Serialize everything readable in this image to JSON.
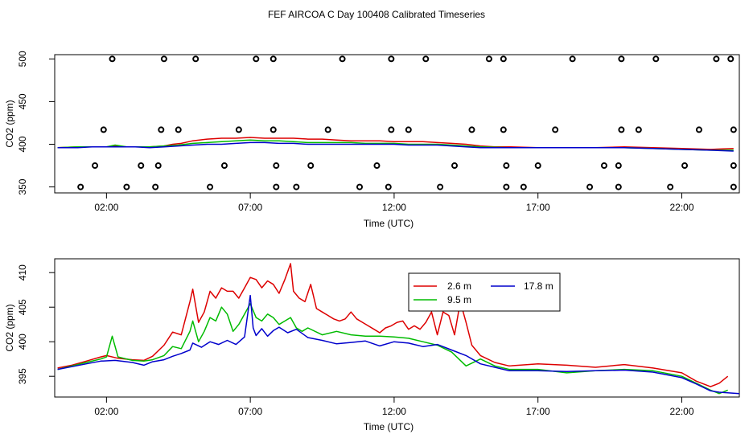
{
  "title": "FEF AIRCOA C  Day 100408  Calibrated Timeseries",
  "colors": {
    "s1": "#dd0000",
    "s2": "#00bb00",
    "s3": "#0000cc"
  },
  "chart_data": [
    {
      "type": "scatter+line",
      "name": "top",
      "xlabel": "Time (UTC)",
      "ylabel": "CO2 (ppm)",
      "xlim": [
        0.2,
        24.0
      ],
      "ylim": [
        343,
        505
      ],
      "xticks": [
        2,
        7,
        12,
        17,
        22
      ],
      "xtick_labels": [
        "02:00",
        "07:00",
        "12:00",
        "17:00",
        "22:00"
      ],
      "yticks": [
        350,
        400,
        450,
        500
      ],
      "ytick_labels": [
        "350",
        "400",
        "450",
        "500"
      ],
      "markers": [
        [
          1.1,
          350
        ],
        [
          1.6,
          375
        ],
        [
          1.9,
          417
        ],
        [
          2.2,
          500
        ],
        [
          2.7,
          350
        ],
        [
          3.2,
          375
        ],
        [
          3.7,
          350
        ],
        [
          3.8,
          375
        ],
        [
          3.9,
          417
        ],
        [
          4.0,
          500
        ],
        [
          4.5,
          417
        ],
        [
          5.1,
          500
        ],
        [
          5.6,
          350
        ],
        [
          6.1,
          375
        ],
        [
          6.6,
          417
        ],
        [
          7.2,
          500
        ],
        [
          7.8,
          417
        ],
        [
          7.8,
          500
        ],
        [
          7.9,
          375
        ],
        [
          7.9,
          350
        ],
        [
          8.6,
          350
        ],
        [
          9.1,
          375
        ],
        [
          9.7,
          417
        ],
        [
          10.2,
          500
        ],
        [
          10.8,
          350
        ],
        [
          11.4,
          375
        ],
        [
          11.8,
          350
        ],
        [
          11.9,
          417
        ],
        [
          11.9,
          500
        ],
        [
          12.5,
          417
        ],
        [
          13.1,
          500
        ],
        [
          13.6,
          350
        ],
        [
          14.1,
          375
        ],
        [
          14.7,
          417
        ],
        [
          15.3,
          500
        ],
        [
          15.8,
          500
        ],
        [
          15.8,
          417
        ],
        [
          15.9,
          375
        ],
        [
          15.9,
          350
        ],
        [
          16.5,
          350
        ],
        [
          17.0,
          375
        ],
        [
          17.6,
          417
        ],
        [
          18.2,
          500
        ],
        [
          18.8,
          350
        ],
        [
          19.3,
          375
        ],
        [
          19.8,
          350
        ],
        [
          19.8,
          375
        ],
        [
          19.9,
          417
        ],
        [
          19.9,
          500
        ],
        [
          20.5,
          417
        ],
        [
          21.1,
          500
        ],
        [
          21.6,
          350
        ],
        [
          22.1,
          375
        ],
        [
          22.6,
          417
        ],
        [
          23.2,
          500
        ],
        [
          23.7,
          500
        ],
        [
          23.8,
          417
        ],
        [
          23.8,
          375
        ],
        [
          23.8,
          350
        ]
      ],
      "series": [
        {
          "name": "2.6 m",
          "x": [
            0.3,
            1,
            1.5,
            2,
            2.3,
            2.7,
            3,
            3.5,
            4,
            4.3,
            4.6,
            5,
            5.5,
            6,
            6.5,
            7,
            7.5,
            8,
            8.5,
            9,
            9.5,
            10,
            10.5,
            11,
            11.5,
            12,
            12.5,
            13,
            13.5,
            14,
            14.5,
            15,
            15.5,
            16,
            17,
            18,
            19,
            20,
            21,
            22,
            23,
            23.8
          ],
          "y": [
            396,
            397,
            397,
            397,
            398,
            397,
            397,
            397,
            398,
            400,
            401,
            404,
            406,
            407,
            407,
            408,
            407,
            407,
            407,
            406,
            406,
            405,
            404,
            404,
            404,
            403,
            403,
            403,
            402,
            401,
            400,
            398,
            397,
            397,
            396,
            396,
            396,
            397,
            396,
            395,
            394,
            395
          ]
        },
        {
          "name": "9.5 m",
          "x": [
            0.3,
            1,
            1.5,
            2,
            2.3,
            2.7,
            3,
            3.5,
            4,
            4.5,
            5,
            5.5,
            6,
            6.5,
            7,
            7.5,
            8,
            8.5,
            9,
            9.5,
            10,
            10.5,
            11,
            11.5,
            12,
            12.5,
            13,
            13.5,
            14,
            14.5,
            15,
            16,
            17,
            18,
            19,
            20,
            21,
            22,
            23,
            23.8
          ],
          "y": [
            396,
            397,
            397,
            397,
            399,
            397,
            397,
            397,
            398,
            399,
            401,
            402,
            403,
            404,
            405,
            404,
            404,
            403,
            402,
            402,
            402,
            402,
            401,
            401,
            401,
            400,
            400,
            400,
            399,
            398,
            397,
            396,
            396,
            396,
            396,
            396,
            395,
            394,
            393,
            393
          ]
        },
        {
          "name": "17.8 m",
          "x": [
            0.3,
            1,
            1.5,
            2,
            2.5,
            3,
            3.5,
            4,
            4.5,
            5,
            5.5,
            6,
            6.5,
            7,
            7.5,
            8,
            8.5,
            9,
            9.5,
            10,
            10.5,
            11,
            11.5,
            12,
            12.5,
            13,
            13.5,
            14,
            14.5,
            15,
            16,
            17,
            18,
            19,
            20,
            21,
            22,
            23,
            23.8
          ],
          "y": [
            396,
            396,
            397,
            397,
            397,
            397,
            396,
            397,
            398,
            399,
            400,
            400,
            401,
            402,
            402,
            401,
            401,
            400,
            400,
            400,
            400,
            400,
            400,
            400,
            399,
            399,
            399,
            398,
            397,
            396,
            396,
            396,
            396,
            396,
            396,
            395,
            394,
            393,
            392
          ]
        }
      ]
    },
    {
      "type": "line",
      "name": "bottom",
      "xlabel": "Time (UTC)",
      "ylabel": "CO2 (ppm)",
      "xlim": [
        0.2,
        24.0
      ],
      "ylim": [
        392,
        412
      ],
      "xticks": [
        2,
        7,
        12,
        17,
        22
      ],
      "xtick_labels": [
        "02:00",
        "07:00",
        "12:00",
        "17:00",
        "22:00"
      ],
      "yticks": [
        395,
        400,
        405,
        410
      ],
      "ytick_labels": [
        "395",
        "400",
        "405",
        "410"
      ],
      "legend": [
        "2.6 m",
        "17.8 m",
        "9.5 m"
      ],
      "series": [
        {
          "name": "2.6 m",
          "x": [
            0.3,
            0.8,
            1.3,
            1.8,
            2.0,
            2.4,
            2.9,
            3.3,
            3.6,
            4.0,
            4.3,
            4.6,
            4.9,
            5.0,
            5.2,
            5.4,
            5.6,
            5.8,
            6.0,
            6.2,
            6.4,
            6.6,
            6.8,
            7.0,
            7.2,
            7.4,
            7.6,
            7.8,
            8.0,
            8.2,
            8.4,
            8.5,
            8.7,
            8.9,
            9.1,
            9.3,
            9.5,
            9.7,
            9.9,
            10.1,
            10.3,
            10.5,
            10.7,
            10.9,
            11.1,
            11.3,
            11.5,
            11.7,
            11.9,
            12.1,
            12.3,
            12.5,
            12.7,
            12.9,
            13.1,
            13.3,
            13.5,
            13.7,
            13.9,
            14.1,
            14.3,
            14.5,
            14.7,
            15.0,
            15.5,
            16.0,
            17.0,
            18.0,
            19.0,
            20.0,
            21.0,
            22.0,
            22.5,
            23.0,
            23.3,
            23.6
          ],
          "y": [
            396.2,
            396.6,
            397.2,
            397.8,
            398.0,
            397.6,
            397.4,
            397.3,
            397.9,
            399.5,
            401.4,
            401.0,
            405.8,
            407.6,
            402.8,
            404.3,
            407.3,
            406.3,
            407.8,
            407.3,
            407.3,
            406.3,
            407.8,
            409.3,
            409.0,
            407.8,
            408.8,
            408.3,
            407.0,
            409.0,
            411.3,
            407.3,
            406.3,
            405.8,
            408.3,
            404.8,
            404.3,
            403.8,
            403.3,
            403.0,
            403.3,
            404.3,
            403.3,
            402.8,
            402.3,
            401.8,
            401.3,
            402.0,
            402.3,
            402.8,
            403.0,
            401.8,
            402.3,
            401.8,
            402.8,
            404.3,
            401.0,
            404.3,
            403.8,
            401.0,
            405.8,
            402.8,
            399.5,
            398.0,
            397.0,
            396.5,
            396.8,
            396.6,
            396.3,
            396.7,
            396.2,
            395.5,
            394.3,
            393.5,
            394.0,
            395.0
          ]
        },
        {
          "name": "9.5 m",
          "x": [
            0.3,
            0.8,
            1.3,
            1.8,
            2.0,
            2.2,
            2.4,
            2.6,
            2.9,
            3.3,
            3.6,
            4.0,
            4.3,
            4.6,
            4.9,
            5.0,
            5.2,
            5.4,
            5.6,
            5.8,
            6.0,
            6.2,
            6.4,
            6.6,
            6.8,
            7.0,
            7.2,
            7.4,
            7.6,
            7.8,
            8.0,
            8.2,
            8.4,
            8.6,
            8.8,
            9.0,
            9.5,
            10.0,
            10.5,
            11.0,
            11.5,
            12.0,
            12.5,
            13.0,
            13.5,
            14.0,
            14.5,
            15.0,
            15.5,
            16.0,
            17.0,
            18.0,
            19.0,
            20.0,
            21.0,
            22.0,
            22.5,
            23.0,
            23.3,
            23.6
          ],
          "y": [
            396.0,
            396.5,
            397.0,
            397.5,
            397.8,
            400.8,
            397.8,
            397.6,
            397.3,
            397.2,
            397.4,
            398.0,
            399.3,
            399.0,
            401.5,
            403.0,
            400.0,
            401.5,
            403.5,
            403.0,
            405.0,
            404.0,
            401.5,
            402.5,
            404.0,
            405.5,
            403.5,
            403.0,
            404.0,
            403.5,
            402.5,
            403.0,
            403.5,
            402.0,
            401.5,
            402.0,
            401.0,
            401.5,
            401.0,
            400.8,
            400.8,
            400.7,
            400.5,
            400.0,
            399.5,
            398.5,
            396.5,
            397.5,
            396.5,
            396.0,
            396.0,
            395.5,
            395.8,
            396.0,
            395.8,
            395.0,
            394.0,
            393.0,
            392.5,
            393.0
          ]
        },
        {
          "name": "17.8 m",
          "x": [
            0.3,
            0.8,
            1.3,
            1.8,
            2.3,
            2.9,
            3.3,
            3.6,
            4.0,
            4.3,
            4.6,
            4.9,
            5.0,
            5.3,
            5.6,
            5.9,
            6.2,
            6.5,
            6.8,
            7.0,
            7.1,
            7.2,
            7.4,
            7.6,
            7.8,
            8.0,
            8.3,
            8.6,
            9.0,
            9.5,
            10.0,
            10.5,
            11.0,
            11.5,
            12.0,
            12.5,
            13.0,
            13.5,
            14.0,
            14.5,
            15.0,
            15.5,
            16.0,
            17.0,
            18.0,
            19.0,
            20.0,
            21.0,
            22.0,
            22.5,
            23.0,
            23.3,
            23.6,
            24.0
          ],
          "y": [
            396.0,
            396.4,
            396.8,
            397.2,
            397.3,
            397.0,
            396.6,
            397.1,
            397.4,
            397.9,
            398.3,
            398.8,
            399.8,
            399.2,
            400.0,
            399.6,
            400.2,
            399.6,
            400.7,
            406.7,
            402.0,
            400.9,
            401.9,
            400.8,
            401.6,
            402.1,
            401.3,
            401.8,
            400.6,
            400.2,
            399.7,
            399.9,
            400.1,
            399.4,
            400.0,
            399.8,
            399.3,
            399.6,
            398.8,
            398.0,
            396.8,
            396.3,
            395.8,
            395.8,
            395.7,
            395.8,
            395.9,
            395.6,
            394.8,
            393.9,
            392.9,
            392.7,
            392.6,
            392.5
          ]
        }
      ]
    }
  ]
}
